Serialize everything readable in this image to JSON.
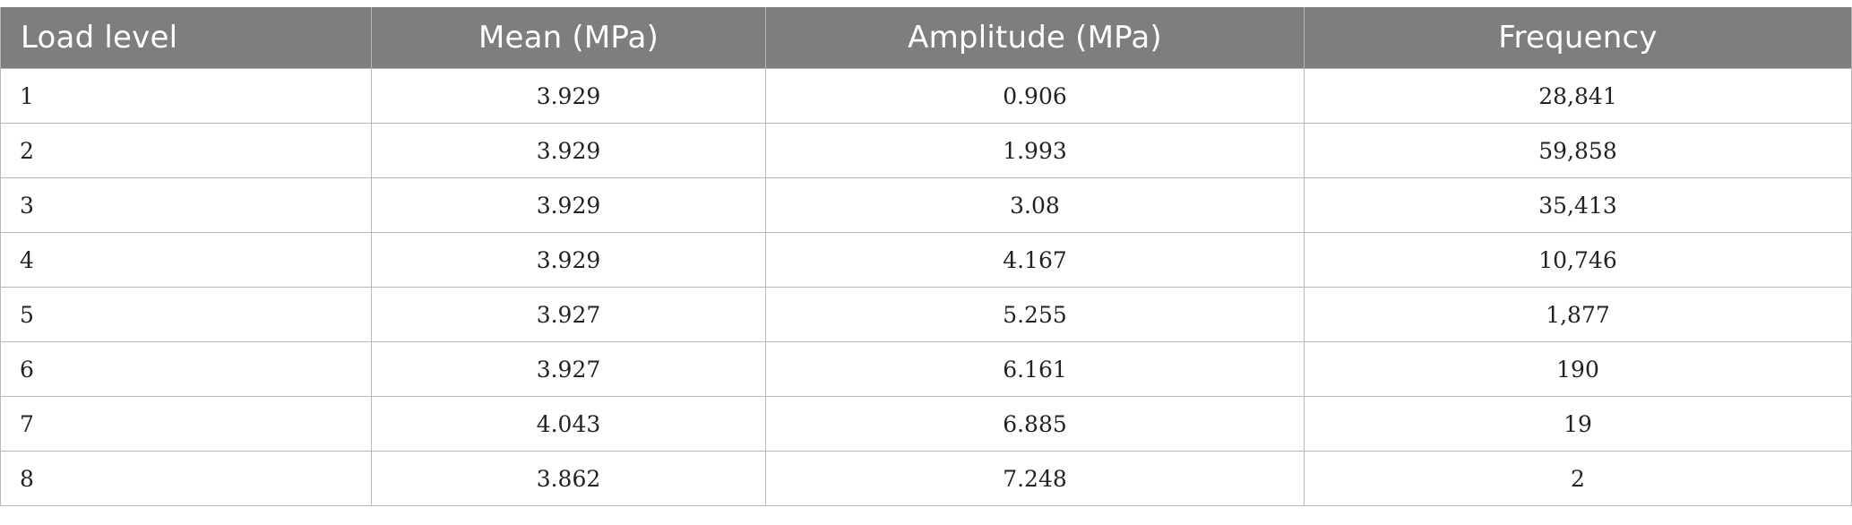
{
  "table": {
    "headers": [
      "Load level",
      "Mean (MPa)",
      "Amplitude (MPa)",
      "Frequency"
    ],
    "rows": [
      [
        "1",
        "3.929",
        "0.906",
        "28,841"
      ],
      [
        "2",
        "3.929",
        "1.993",
        "59,858"
      ],
      [
        "3",
        "3.929",
        "3.08",
        "35,413"
      ],
      [
        "4",
        "3.929",
        "4.167",
        "10,746"
      ],
      [
        "5",
        "3.927",
        "5.255",
        "1,877"
      ],
      [
        "6",
        "3.927",
        "6.161",
        "190"
      ],
      [
        "7",
        "4.043",
        "6.885",
        "19"
      ],
      [
        "8",
        "3.862",
        "7.248",
        "2"
      ]
    ]
  },
  "colors": {
    "header_background": "#7d7f7c",
    "header_text": "#ffffff",
    "grid_line": "#b9b9b9"
  }
}
